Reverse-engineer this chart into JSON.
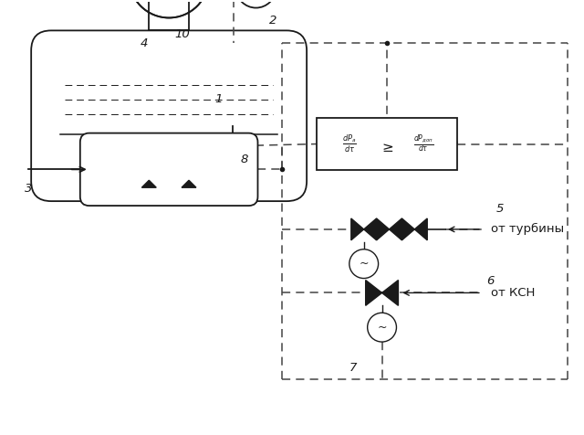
{
  "bg_color": "#ffffff",
  "line_color": "#1a1a1a",
  "fig_w": 6.4,
  "fig_h": 4.76,
  "dpi": 100
}
